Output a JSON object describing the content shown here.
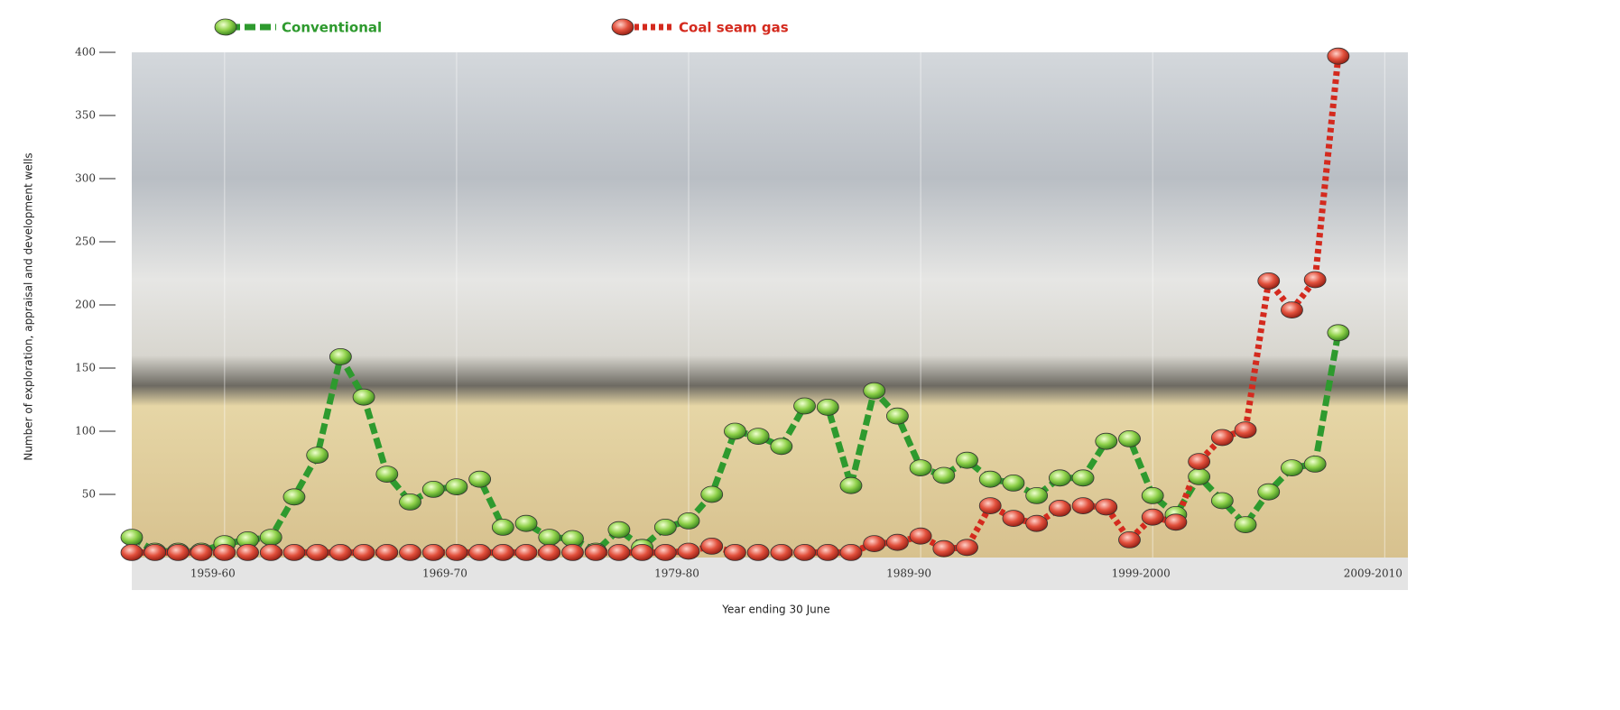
{
  "chart_data": {
    "type": "line",
    "x_label": "Year ending 30 June",
    "y_label": "Number of exploration, appraisal and development wells",
    "x": [
      1956,
      1957,
      1958,
      1959,
      1960,
      1961,
      1962,
      1963,
      1964,
      1965,
      1966,
      1967,
      1968,
      1969,
      1970,
      1971,
      1972,
      1973,
      1974,
      1975,
      1976,
      1977,
      1978,
      1979,
      1980,
      1981,
      1982,
      1983,
      1984,
      1985,
      1986,
      1987,
      1988,
      1989,
      1990,
      1991,
      1992,
      1993,
      1994,
      1995,
      1996,
      1997,
      1998,
      1999,
      2000,
      2001,
      2002,
      2003,
      2004,
      2005,
      2006,
      2007,
      2008
    ],
    "series": [
      {
        "name": "Conventional",
        "color": "#2e9a2e",
        "values": [
          16,
          5,
          5,
          5,
          11,
          14,
          16,
          48,
          81,
          159,
          127,
          66,
          44,
          54,
          56,
          62,
          24,
          27,
          16,
          15,
          5,
          22,
          8,
          24,
          29,
          50,
          100,
          96,
          88,
          120,
          119,
          57,
          132,
          112,
          71,
          65,
          77,
          62,
          59,
          49,
          63,
          63,
          92,
          94,
          49,
          34,
          64,
          45,
          26,
          52,
          71,
          74,
          178
        ]
      },
      {
        "name": "Coal seam gas",
        "color": "#d42a1e",
        "values": [
          4,
          4,
          4,
          4,
          4,
          4,
          4,
          4,
          4,
          4,
          4,
          4,
          4,
          4,
          4,
          4,
          4,
          4,
          4,
          4,
          4,
          4,
          4,
          4,
          5,
          9,
          4,
          4,
          4,
          4,
          4,
          4,
          11,
          12,
          17,
          7,
          8,
          41,
          31,
          27,
          39,
          41,
          40,
          14,
          32,
          28,
          76,
          95,
          101,
          219,
          196,
          220,
          397
        ]
      }
    ],
    "xlim": [
      1956,
      2011
    ],
    "ylim": [
      0,
      400
    ],
    "yticks": [
      50,
      100,
      150,
      200,
      250,
      300,
      350,
      400
    ],
    "xticks": [
      {
        "value": 1960,
        "label": "1959-60"
      },
      {
        "value": 1970,
        "label": "1969-70"
      },
      {
        "value": 1980,
        "label": "1979-80"
      },
      {
        "value": 1990,
        "label": "1989-90"
      },
      {
        "value": 2000,
        "label": "1999-2000"
      },
      {
        "value": 2010,
        "label": "2009-2010"
      }
    ]
  }
}
